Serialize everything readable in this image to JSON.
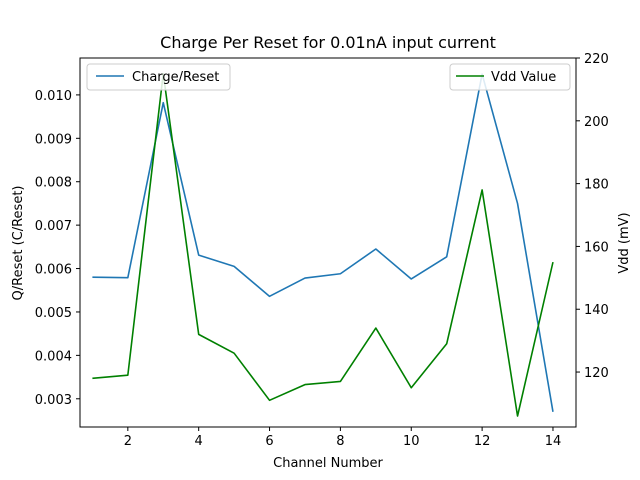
{
  "chart_data": {
    "type": "line",
    "title": "Charge Per Reset for 0.01nA input current",
    "xlabel": "Channel Number",
    "ylabel_left": "Q/Reset (C/Reset)",
    "ylabel_right": "Vdd (mV)",
    "x": [
      1,
      2,
      3,
      4,
      5,
      6,
      7,
      8,
      9,
      10,
      11,
      12,
      13,
      14
    ],
    "xlim": [
      0.65,
      14.65
    ],
    "ylim_left": [
      0.00235,
      0.01085
    ],
    "ylim_right": [
      102.5,
      220
    ],
    "x_ticks": [
      2,
      4,
      6,
      8,
      10,
      12,
      14
    ],
    "y_ticks_left": [
      0.003,
      0.004,
      0.005,
      0.006,
      0.007,
      0.008,
      0.009,
      0.01
    ],
    "y_ticks_right": [
      120,
      140,
      160,
      180,
      200,
      220
    ],
    "grid": false,
    "series": [
      {
        "name": "Charge/Reset",
        "axis": "left",
        "color": "#1f77b4",
        "legend_position": "upper-left",
        "values": [
          0.0058,
          0.00579,
          0.00982,
          0.00631,
          0.00605,
          0.00536,
          0.00578,
          0.00588,
          0.00645,
          0.00576,
          0.00627,
          0.01048,
          0.0075,
          0.0027
        ]
      },
      {
        "name": "Vdd Value",
        "axis": "right",
        "color": "#008000",
        "legend_position": "upper-right",
        "values": [
          118,
          119,
          215,
          132,
          126,
          111,
          116,
          117,
          134,
          115,
          129,
          178,
          106,
          155
        ]
      }
    ]
  }
}
